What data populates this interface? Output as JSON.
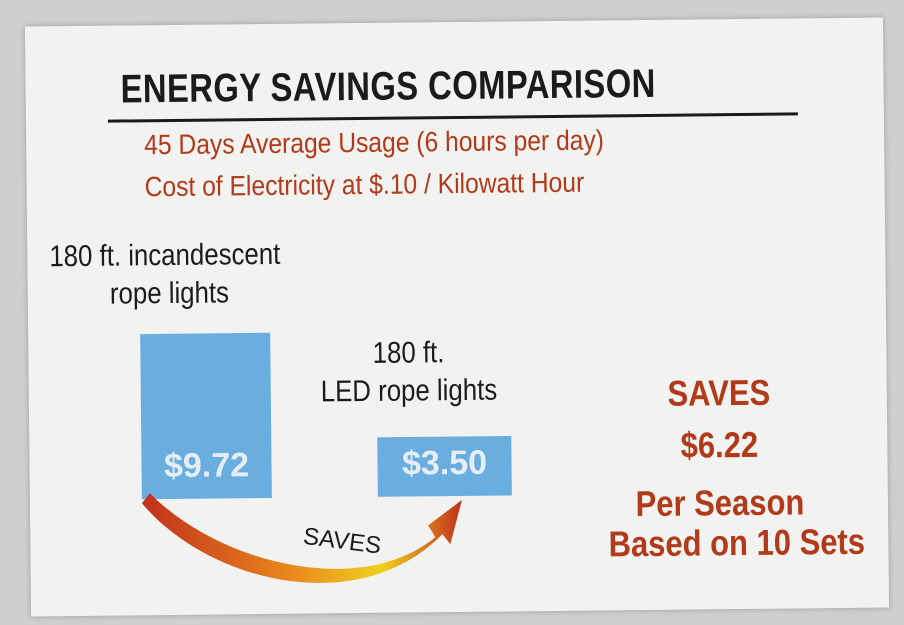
{
  "chart_data": {
    "type": "bar",
    "title": "ENERGY SAVINGS COMPARISON",
    "subtitle_lines": [
      "45 Days Average Usage (6 hours per day)",
      "Cost of Electricity at $.10 / Kilowatt Hour"
    ],
    "categories": [
      [
        "180 ft. incandescent",
        "rope lights"
      ],
      [
        "180 ft.",
        "LED rope lights"
      ]
    ],
    "values": [
      9.72,
      3.5
    ],
    "value_labels": [
      "$9.72",
      "$3.50"
    ],
    "bar_color": "#6aaee0",
    "arrow_label": "SAVES",
    "savings": {
      "heading": "SAVES",
      "amount": "$6.22",
      "line1": "Per Season",
      "line2": "Based on 10 Sets"
    }
  }
}
